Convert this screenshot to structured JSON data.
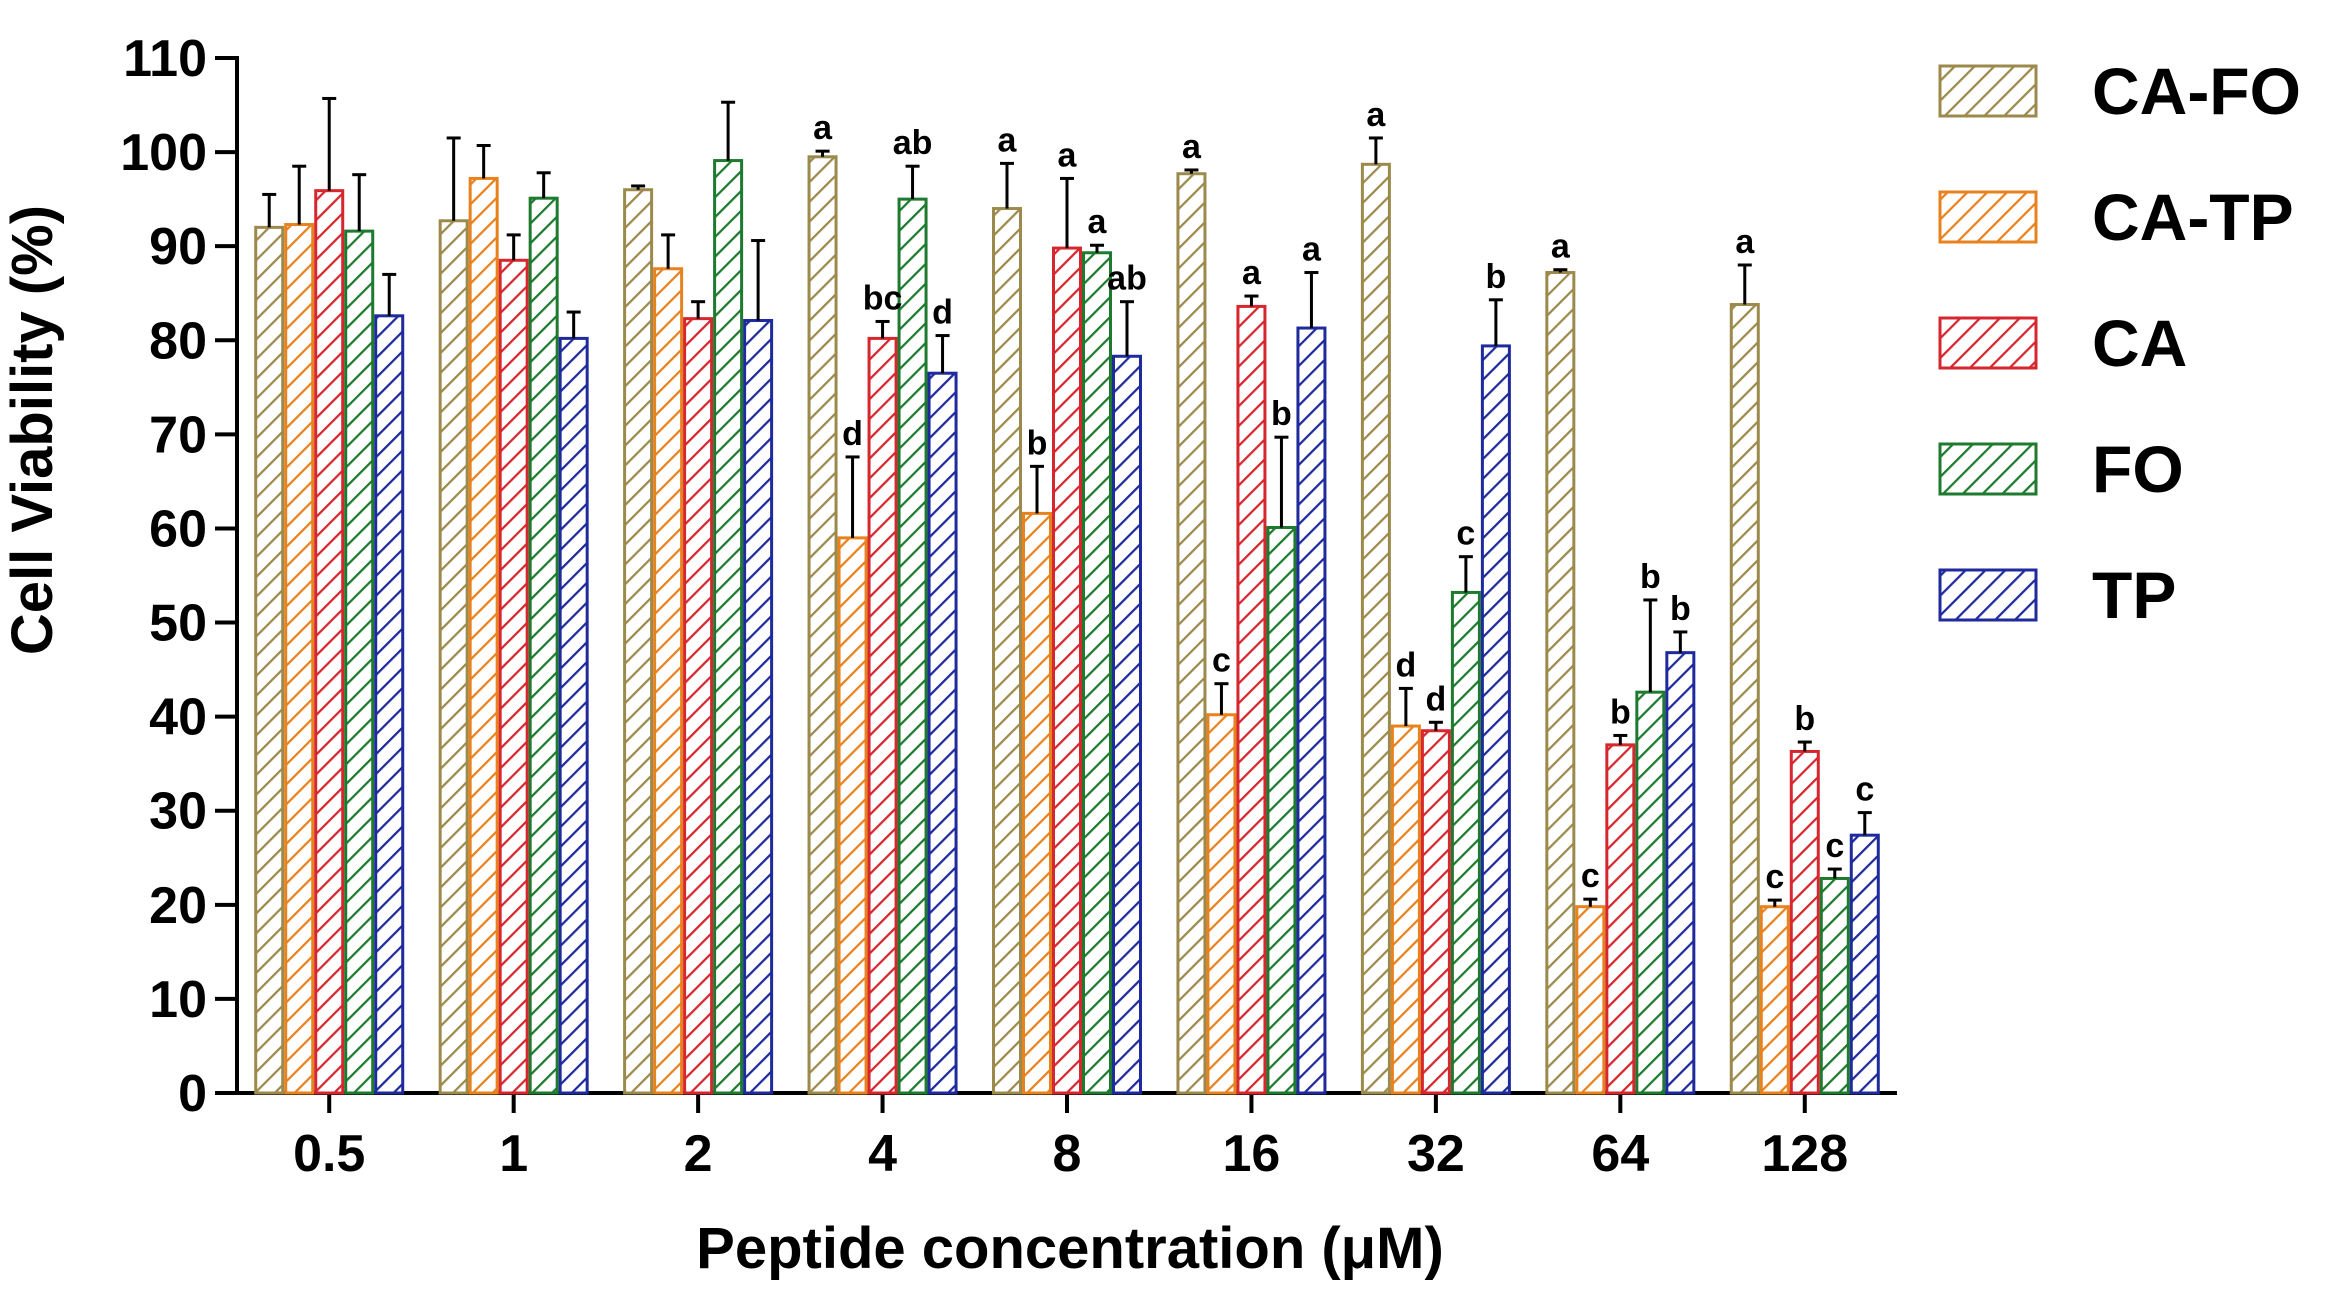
{
  "chart_data": {
    "type": "bar",
    "xlabel": "Peptide concentration (μM)",
    "ylabel": "Cell Viability (%)",
    "ylim": [
      0,
      110
    ],
    "yticks": [
      0,
      10,
      20,
      30,
      40,
      50,
      60,
      70,
      80,
      90,
      100,
      110
    ],
    "grid": false,
    "legend_position": "right",
    "categories": [
      "0.5",
      "1",
      "2",
      "4",
      "8",
      "16",
      "32",
      "64",
      "128"
    ],
    "series": [
      {
        "name": "CA-FO",
        "color": "#9C8A4C",
        "values": [
          92,
          92.7,
          96,
          99.5,
          94,
          97.7,
          98.7,
          87.2,
          83.8
        ],
        "errors": [
          3.5,
          8.8,
          0.4,
          0.6,
          4.8,
          0.4,
          2.8,
          0.3,
          4.2
        ],
        "letters": [
          "",
          "",
          "",
          "a",
          "a",
          "a",
          "a",
          "a",
          "a"
        ]
      },
      {
        "name": "CA-TP",
        "color": "#E8821E",
        "values": [
          92.3,
          97.2,
          87.6,
          59,
          61.6,
          40.2,
          39,
          19.8,
          19.8
        ],
        "errors": [
          6.2,
          3.5,
          3.6,
          8.6,
          5,
          3.3,
          4,
          0.8,
          0.7
        ],
        "letters": [
          "",
          "",
          "",
          "d",
          "b",
          "c",
          "d",
          "c",
          "c"
        ]
      },
      {
        "name": "CA",
        "color": "#D6262E",
        "values": [
          95.9,
          88.5,
          82.3,
          80.2,
          89.8,
          83.6,
          38.5,
          37,
          36.3
        ],
        "errors": [
          9.8,
          2.7,
          1.8,
          1.8,
          7.4,
          1.1,
          0.9,
          1,
          1
        ],
        "letters": [
          "",
          "",
          "",
          "bc",
          "a",
          "a",
          "d",
          "b",
          "b"
        ]
      },
      {
        "name": "FO",
        "color": "#1D7A2E",
        "values": [
          91.6,
          95.1,
          99.1,
          95,
          89.3,
          60.1,
          53.2,
          42.6,
          22.8
        ],
        "errors": [
          6,
          2.7,
          6.2,
          3.5,
          0.8,
          9.6,
          3.8,
          9.8,
          1
        ],
        "letters": [
          "",
          "",
          "",
          "ab",
          "a",
          "b",
          "c",
          "b",
          "c"
        ]
      },
      {
        "name": "TP",
        "color": "#1F2A9C",
        "values": [
          82.6,
          80.2,
          82.1,
          76.5,
          78.3,
          81.3,
          79.4,
          46.8,
          27.4
        ],
        "errors": [
          4.4,
          2.8,
          8.5,
          4,
          5.8,
          5.9,
          4.9,
          2.2,
          2.4
        ],
        "letters": [
          "",
          "",
          "",
          "d",
          "ab",
          "a",
          "b",
          "b",
          "c"
        ]
      }
    ]
  }
}
